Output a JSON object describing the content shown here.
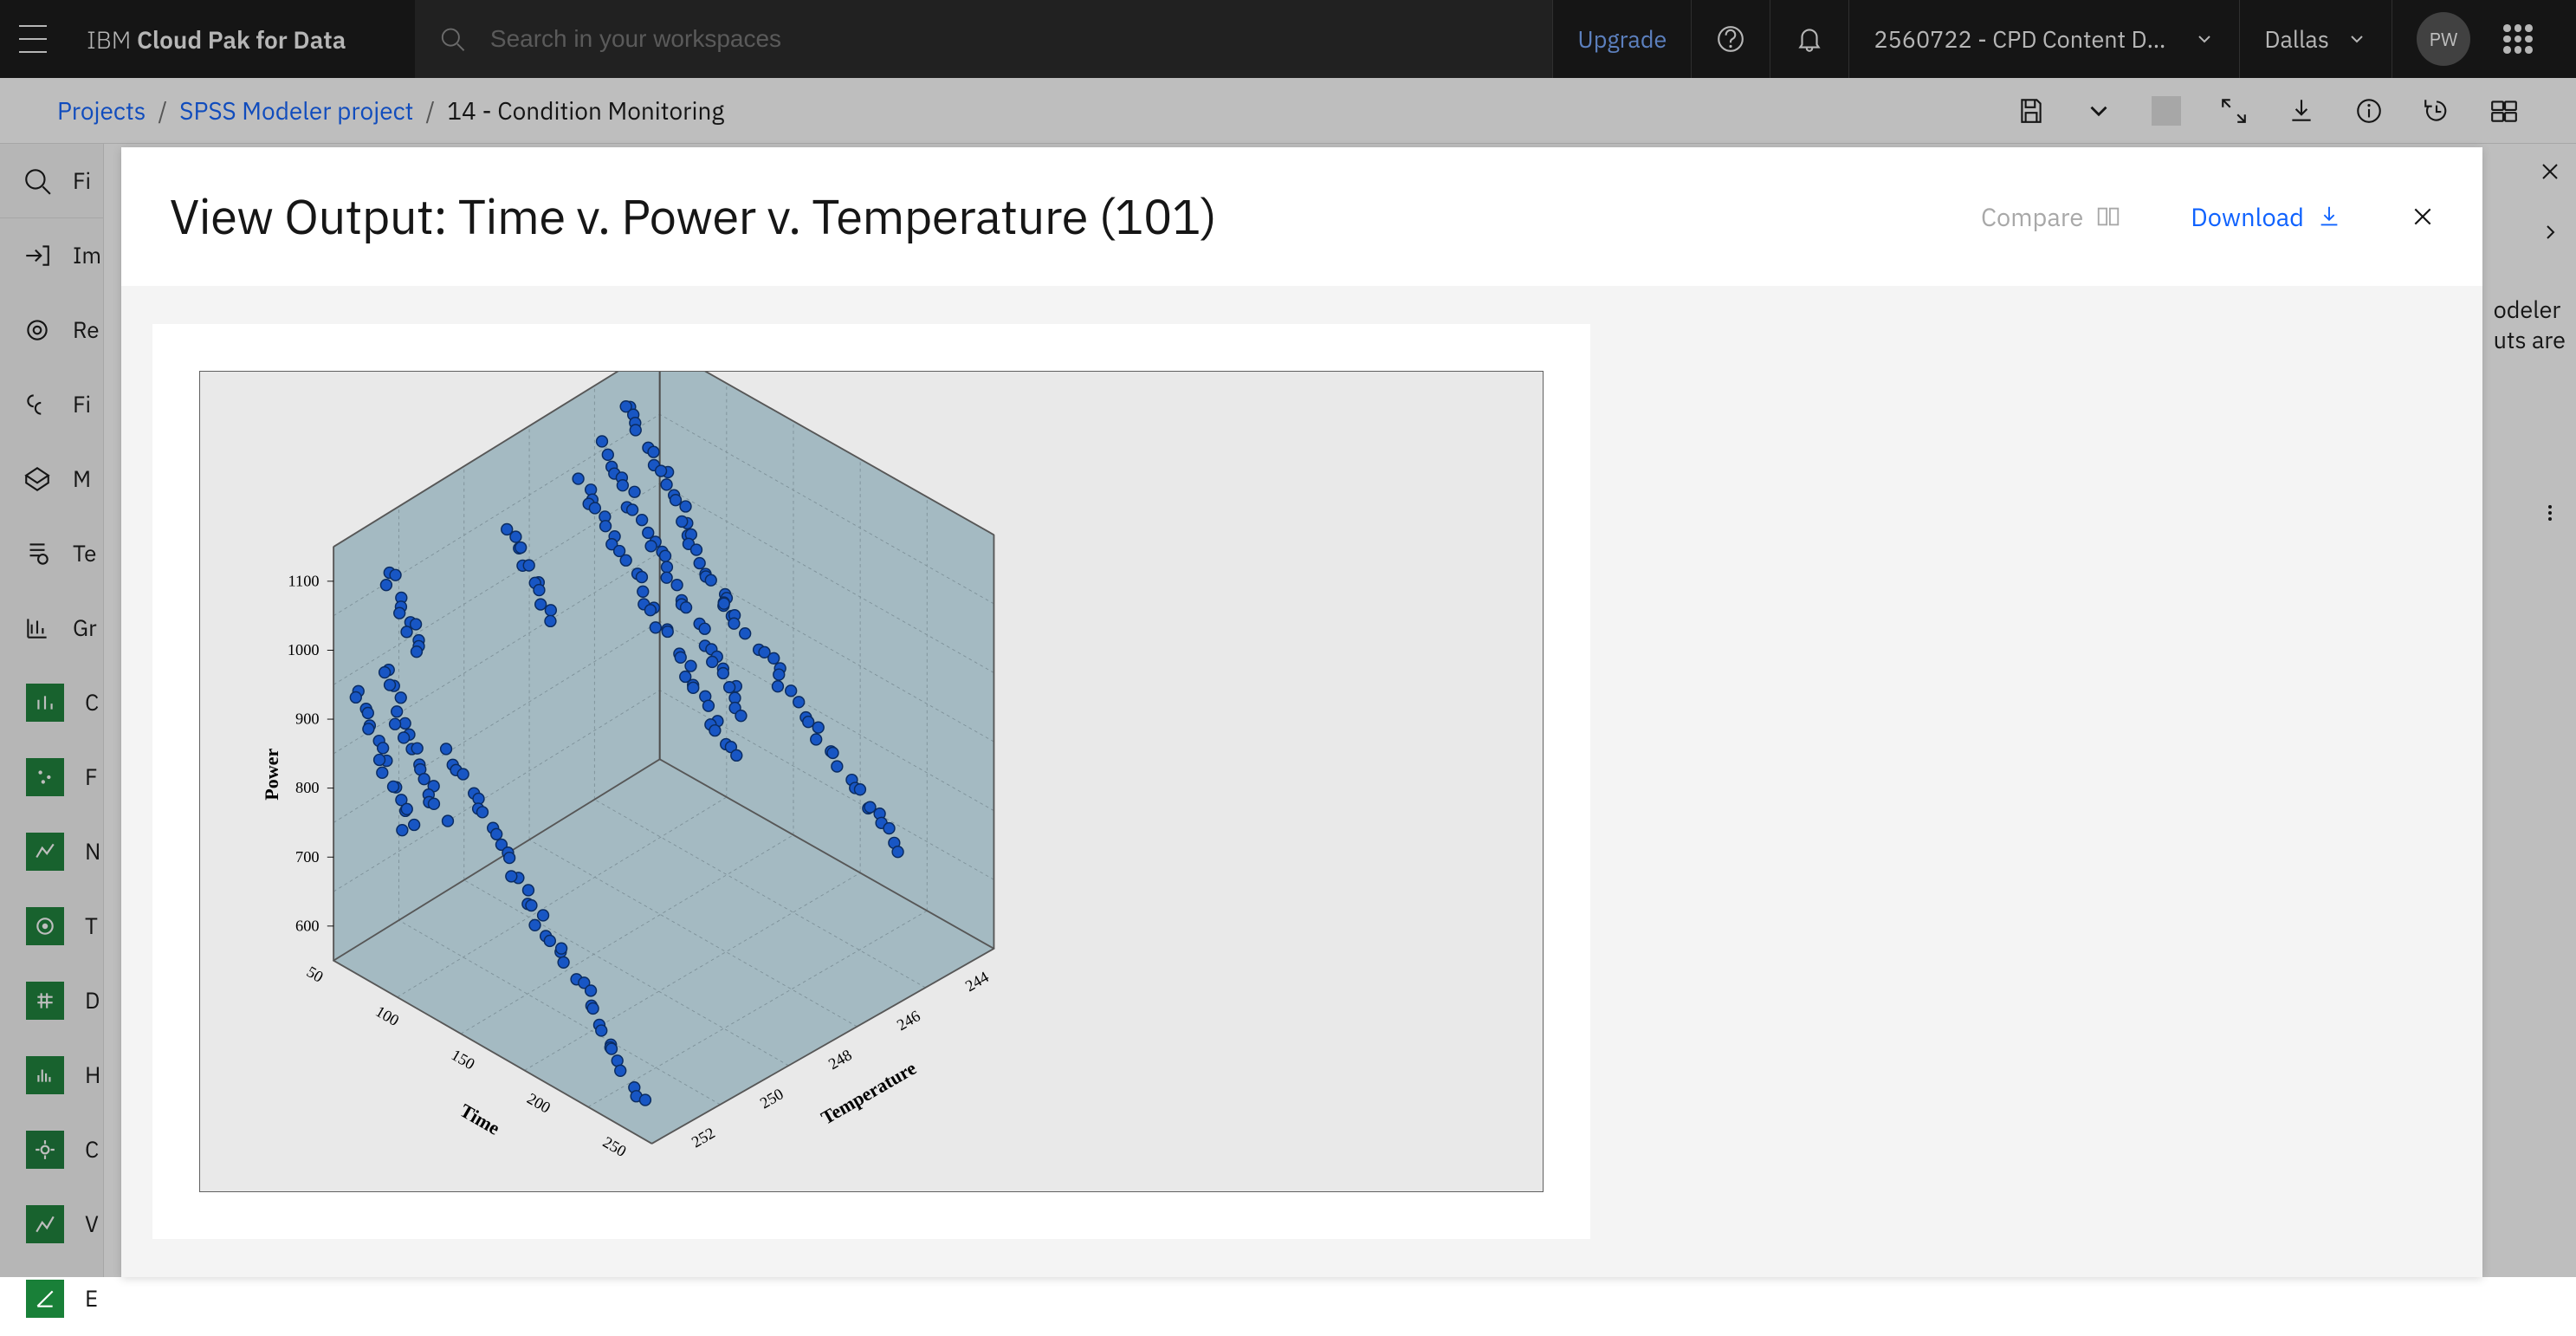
{
  "brand_light": "IBM",
  "brand_bold": "Cloud Pak for Data",
  "search_placeholder": "Search in your workspaces",
  "upgrade_label": "Upgrade",
  "workspace_name": "2560722 - CPD Content De…",
  "region_label": "Dallas",
  "avatar_initials": "PW",
  "breadcrumb": {
    "root": "Projects",
    "project": "SPSS Modeler project",
    "item": "14 - Condition Monitoring"
  },
  "modal": {
    "title": "View Output: Time v. Power v. Temperature (101)",
    "compare_label": "Compare",
    "download_label": "Download"
  },
  "sidebar": {
    "search_placeholder": "Fi",
    "items": [
      "Im",
      "Re",
      "Fi",
      "M",
      "Te",
      "Gr"
    ],
    "leaves": [
      "C",
      "F",
      "N",
      "T",
      "D",
      "H",
      "C",
      "V",
      "E"
    ]
  },
  "rightpanel_text": [
    "odeler",
    "uts are"
  ],
  "chart": {
    "type": "3d-scatter",
    "frame_color": "#606060",
    "background": "#e9e9e9",
    "cube_fill": "#a4bac2",
    "cube_stroke": "#575757",
    "grid_color": "#7e9199",
    "point_fill": "#1856c4",
    "point_stroke": "#0b2c61",
    "point_radius": 7,
    "axes": {
      "z": {
        "label": "Power",
        "ticks": [
          600,
          700,
          800,
          900,
          1000,
          1100
        ]
      },
      "x": {
        "label": "Time",
        "ticks": [
          50,
          100,
          150,
          200,
          250
        ]
      },
      "y": {
        "label": "Temperature",
        "ticks": [
          244,
          246,
          248,
          250,
          252
        ]
      }
    },
    "label_font": "bold 22px serif",
    "tick_font": "18px serif"
  }
}
